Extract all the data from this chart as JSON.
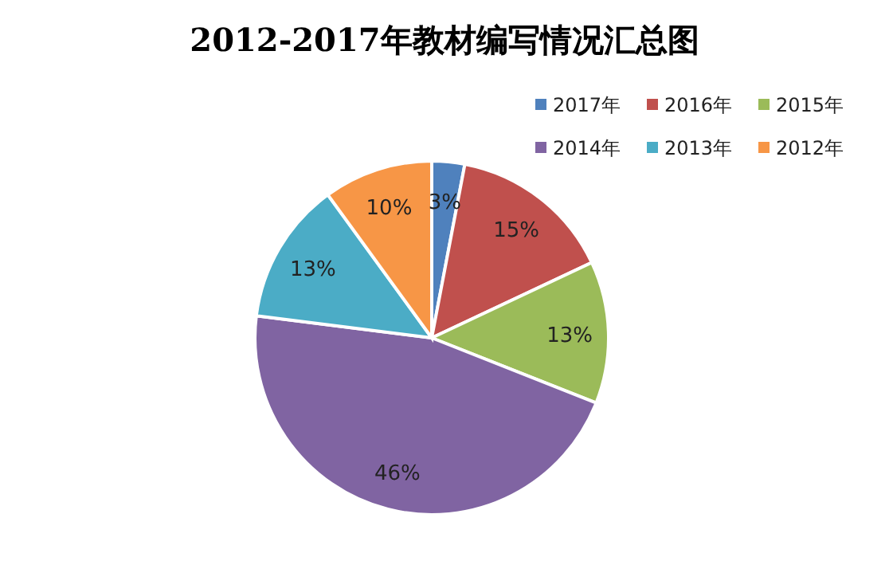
{
  "chart_data": {
    "type": "pie",
    "title": "2012-2017年教材编写情况汇总图",
    "categories": [
      "2017年",
      "2016年",
      "2015年",
      "2014年",
      "2013年",
      "2012年"
    ],
    "values": [
      3,
      15,
      13,
      46,
      13,
      10
    ],
    "value_labels": [
      "3%",
      "15%",
      "13%",
      "46%",
      "13%",
      "10%"
    ],
    "colors": [
      "#4f81bd",
      "#c0504d",
      "#9bbb59",
      "#8064a2",
      "#4bacc6",
      "#f79646"
    ],
    "legend": "top right"
  }
}
